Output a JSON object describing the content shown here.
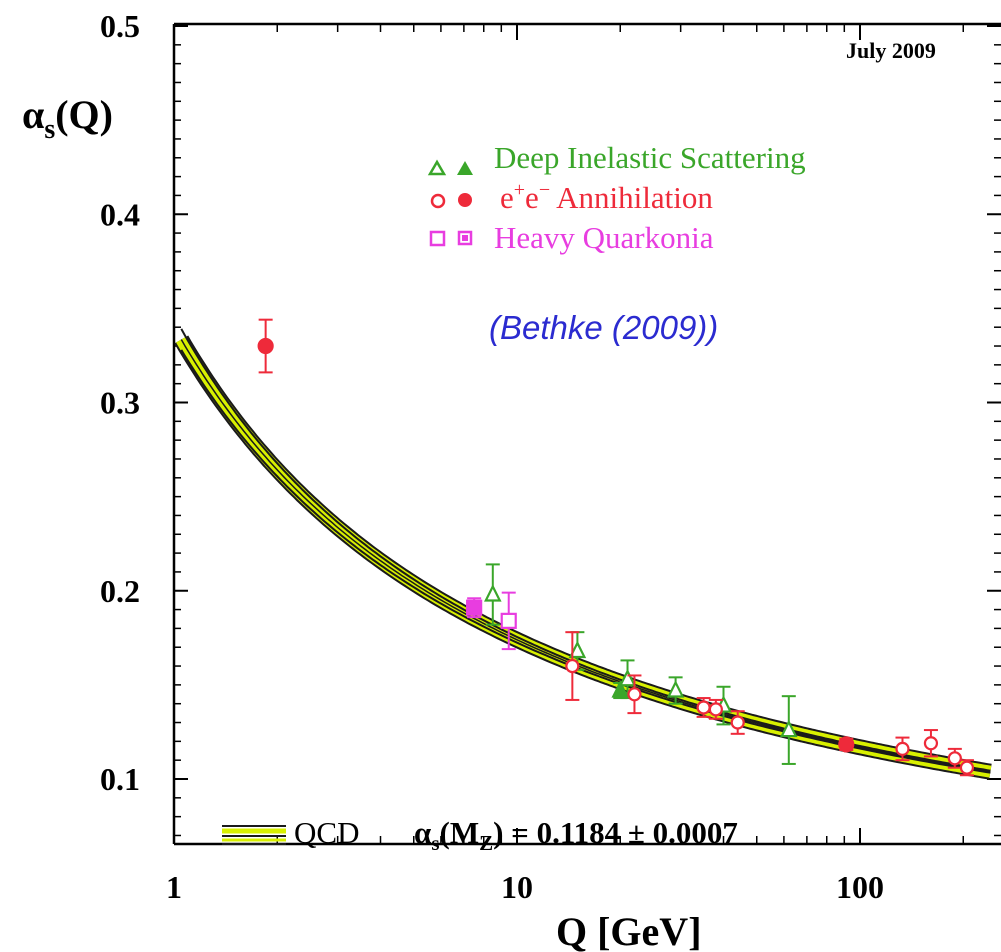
{
  "chart_data": {
    "type": "scatter",
    "date_note": "July 2009",
    "citation": "(Bethke (2009))",
    "x_axis": {
      "label": "Q [GeV]",
      "scale": "log",
      "range": [
        1,
        230
      ],
      "tick_labels": [
        "1",
        "10",
        "100"
      ],
      "tick_values": [
        1,
        10,
        100
      ]
    },
    "y_axis": {
      "label_main": "α",
      "label_sub": "s",
      "label_tail": "(Q)",
      "range": [
        0.05,
        0.5
      ],
      "tick_labels": [
        "0.1",
        "0.2",
        "0.3",
        "0.4",
        "0.5"
      ],
      "tick_values": [
        0.1,
        0.2,
        0.3,
        0.4,
        0.5
      ]
    },
    "legend": {
      "dis": {
        "label": "Deep Inelastic Scattering",
        "color": "#3aa62a"
      },
      "ee": {
        "label_pre": "e",
        "sup1": "+",
        "label_mid": "e",
        "sup2": "−",
        "label_post": " Annihilation",
        "color": "#ee2a3a"
      },
      "hq": {
        "label": "Heavy Quarkonia",
        "color": "#e83de0"
      }
    },
    "qcd": {
      "label": "QCD",
      "formula_alpha": "α",
      "formula_sub": "s",
      "formula_rest": "(M",
      "formula_subZ": "Z",
      "formula_tail": ") = 0.1184 ± 0.0007",
      "alpha_s_MZ": 0.1184,
      "uncertainty": 0.0007,
      "band_color": "#d8f000",
      "edge_color": "#1a1a1a"
    },
    "series": [
      {
        "name": "Deep Inelastic Scattering",
        "marker": "triangle",
        "color": "#3aa62a",
        "points": [
          {
            "x": 8.5,
            "y": 0.198,
            "err": 0.016,
            "filled": false
          },
          {
            "x": 15.0,
            "y": 0.168,
            "err": 0.01,
            "filled": false
          },
          {
            "x": 20.0,
            "y": 0.147,
            "err": 0.004,
            "filled": true
          },
          {
            "x": 21.0,
            "y": 0.153,
            "err": 0.01,
            "filled": false
          },
          {
            "x": 29.0,
            "y": 0.147,
            "err": 0.007,
            "filled": false
          },
          {
            "x": 40.0,
            "y": 0.139,
            "err": 0.01,
            "filled": false
          },
          {
            "x": 62.0,
            "y": 0.126,
            "err": 0.018,
            "filled": false
          }
        ]
      },
      {
        "name": "e+e- Annihilation",
        "marker": "circle",
        "color": "#ee2a3a",
        "points": [
          {
            "x": 1.85,
            "y": 0.33,
            "err": 0.014,
            "filled": true
          },
          {
            "x": 14.5,
            "y": 0.16,
            "err": 0.018,
            "filled": false
          },
          {
            "x": 22.0,
            "y": 0.145,
            "err": 0.01,
            "filled": false
          },
          {
            "x": 35.0,
            "y": 0.138,
            "err": 0.005,
            "filled": false
          },
          {
            "x": 38.0,
            "y": 0.137,
            "err": 0.005,
            "filled": false
          },
          {
            "x": 44.0,
            "y": 0.13,
            "err": 0.006,
            "filled": false
          },
          {
            "x": 91.2,
            "y": 0.1184,
            "err": 0.003,
            "filled": true
          },
          {
            "x": 133.0,
            "y": 0.116,
            "err": 0.006,
            "filled": false
          },
          {
            "x": 161.0,
            "y": 0.119,
            "err": 0.007,
            "filled": false
          },
          {
            "x": 189.0,
            "y": 0.111,
            "err": 0.005,
            "filled": false
          },
          {
            "x": 205.0,
            "y": 0.106,
            "err": 0.004,
            "filled": false
          }
        ]
      },
      {
        "name": "Heavy Quarkonia",
        "marker": "square",
        "color": "#e83de0",
        "points": [
          {
            "x": 7.5,
            "y": 0.191,
            "err": 0.005,
            "filled": true
          },
          {
            "x": 9.46,
            "y": 0.184,
            "err": 0.015,
            "filled": false
          }
        ]
      }
    ]
  }
}
